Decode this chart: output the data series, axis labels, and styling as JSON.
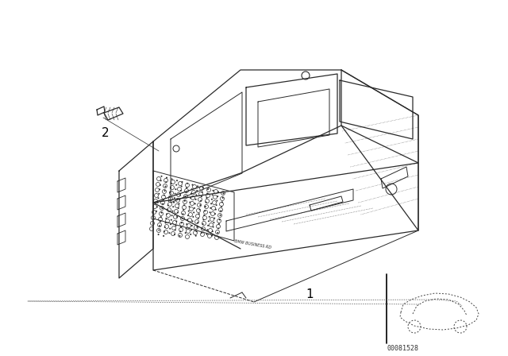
{
  "background_color": "#ffffff",
  "fig_width": 6.4,
  "fig_height": 4.48,
  "dpi": 100,
  "part_number_label": "00081528",
  "label_1": "1",
  "label_2": "2",
  "line_color": "#2a2a2a",
  "line_width": 0.9
}
